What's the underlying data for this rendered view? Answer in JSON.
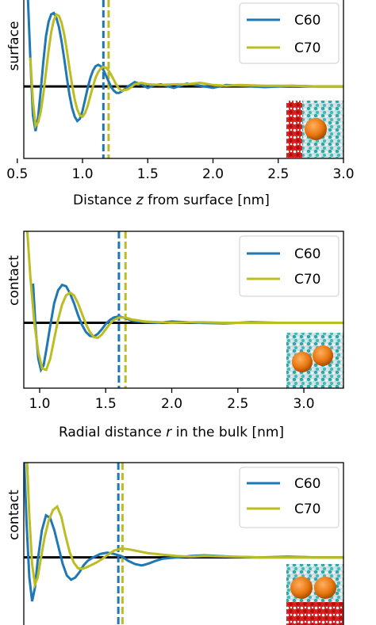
{
  "colors": {
    "c60": "#1f77b4",
    "c70": "#bcbd22",
    "zero": "#000000"
  },
  "chart_data": [
    {
      "type": "line",
      "ylabel": "surface",
      "xlabel_pre": "Distance ",
      "xlabel_var": "z",
      "xlabel_post": " from surface [nm]",
      "xlim": [
        0.55,
        3.0
      ],
      "ylim": [
        -1.0,
        1.2
      ],
      "xticks": [
        0.5,
        1.0,
        1.5,
        2.0,
        2.5,
        3.0
      ],
      "xtick_labels": [
        "0.5",
        "1.0",
        "1.5",
        "2.0",
        "2.5",
        "3.0"
      ],
      "legend_position": "top-right",
      "inset": "surface-c60-snapshot",
      "vlines": {
        "C60": 1.16,
        "C70": 1.2
      },
      "series": [
        {
          "name": "C60",
          "x": [
            0.58,
            0.6,
            0.62,
            0.64,
            0.66,
            0.68,
            0.7,
            0.72,
            0.74,
            0.76,
            0.78,
            0.8,
            0.82,
            0.84,
            0.86,
            0.88,
            0.9,
            0.92,
            0.94,
            0.96,
            0.98,
            1.0,
            1.02,
            1.04,
            1.06,
            1.08,
            1.1,
            1.12,
            1.14,
            1.16,
            1.18,
            1.2,
            1.22,
            1.24,
            1.26,
            1.28,
            1.3,
            1.35,
            1.4,
            1.45,
            1.5,
            1.55,
            1.6,
            1.7,
            1.8,
            1.9,
            2.0,
            2.1,
            2.2,
            2.4,
            2.6,
            2.8,
            3.0
          ],
          "y": [
            1.3,
            0.4,
            -0.4,
            -0.62,
            -0.42,
            -0.05,
            0.35,
            0.7,
            0.9,
            1.0,
            1.02,
            0.95,
            0.82,
            0.62,
            0.38,
            0.12,
            -0.12,
            -0.3,
            -0.42,
            -0.48,
            -0.45,
            -0.34,
            -0.18,
            -0.02,
            0.12,
            0.22,
            0.28,
            0.3,
            0.28,
            0.23,
            0.15,
            0.07,
            -0.01,
            -0.06,
            -0.09,
            -0.09,
            -0.07,
            0.0,
            0.06,
            0.03,
            -0.02,
            0.02,
            0.03,
            -0.02,
            0.04,
            0.01,
            -0.02,
            0.02,
            0.01,
            -0.01,
            0.01,
            0.0,
            0.0
          ]
        },
        {
          "name": "C70",
          "x": [
            0.6,
            0.62,
            0.64,
            0.66,
            0.68,
            0.7,
            0.72,
            0.74,
            0.76,
            0.78,
            0.8,
            0.82,
            0.84,
            0.86,
            0.88,
            0.9,
            0.92,
            0.94,
            0.96,
            0.98,
            1.0,
            1.02,
            1.04,
            1.06,
            1.08,
            1.1,
            1.12,
            1.14,
            1.16,
            1.18,
            1.2,
            1.22,
            1.24,
            1.26,
            1.28,
            1.3,
            1.35,
            1.4,
            1.45,
            1.5,
            1.6,
            1.7,
            1.8,
            1.9,
            2.0,
            2.1,
            2.2,
            2.4,
            2.6,
            2.8,
            3.0
          ],
          "y": [
            0.4,
            -0.2,
            -0.55,
            -0.5,
            -0.35,
            -0.1,
            0.2,
            0.5,
            0.75,
            0.92,
            1.0,
            0.98,
            0.88,
            0.72,
            0.5,
            0.25,
            0.02,
            -0.18,
            -0.32,
            -0.4,
            -0.42,
            -0.37,
            -0.27,
            -0.13,
            0.0,
            0.12,
            0.2,
            0.25,
            0.27,
            0.26,
            0.22,
            0.16,
            0.09,
            0.02,
            -0.03,
            -0.06,
            -0.04,
            0.03,
            0.05,
            0.03,
            0.02,
            0.03,
            0.03,
            0.05,
            0.02,
            0.01,
            0.02,
            0.01,
            0.01,
            0.0,
            0.0
          ]
        }
      ]
    },
    {
      "type": "line",
      "ylabel": "contact",
      "xlabel_pre": "Radial distance ",
      "xlabel_var": "r",
      "xlabel_post": " in the bulk [nm]",
      "xlim": [
        0.88,
        3.3
      ],
      "ylim": [
        -1.0,
        1.4
      ],
      "xticks": [
        1.0,
        1.5,
        2.0,
        2.5,
        3.0
      ],
      "xtick_labels": [
        "1.0",
        "1.5",
        "2.0",
        "2.5",
        "3.0"
      ],
      "legend_position": "top-right",
      "inset": "bulk-c60-pair-snapshot",
      "vlines": {
        "C60": 1.6,
        "C70": 1.65
      },
      "series": [
        {
          "name": "C60",
          "x": [
            0.95,
            0.97,
            0.99,
            1.01,
            1.03,
            1.05,
            1.08,
            1.11,
            1.14,
            1.17,
            1.2,
            1.23,
            1.26,
            1.29,
            1.32,
            1.35,
            1.38,
            1.41,
            1.44,
            1.47,
            1.5,
            1.53,
            1.56,
            1.6,
            1.65,
            1.7,
            1.8,
            1.9,
            2.0,
            2.2,
            2.4,
            2.6,
            2.8,
            3.0,
            3.3
          ],
          "y": [
            0.6,
            -0.1,
            -0.55,
            -0.72,
            -0.65,
            -0.42,
            -0.05,
            0.3,
            0.5,
            0.58,
            0.56,
            0.45,
            0.3,
            0.12,
            -0.03,
            -0.14,
            -0.2,
            -0.21,
            -0.17,
            -0.1,
            -0.02,
            0.04,
            0.08,
            0.1,
            0.07,
            0.03,
            0.01,
            0.0,
            0.02,
            0.0,
            -0.01,
            0.01,
            0.0,
            0.0,
            0.0
          ]
        },
        {
          "name": "C70",
          "x": [
            0.9,
            0.93,
            0.96,
            0.99,
            1.02,
            1.05,
            1.08,
            1.11,
            1.14,
            1.17,
            1.2,
            1.23,
            1.26,
            1.29,
            1.32,
            1.35,
            1.38,
            1.41,
            1.44,
            1.47,
            1.5,
            1.53,
            1.56,
            1.6,
            1.65,
            1.7,
            1.8,
            1.9,
            2.0,
            2.2,
            2.4,
            2.6,
            2.8,
            3.0,
            3.3
          ],
          "y": [
            1.6,
            0.7,
            0.0,
            -0.45,
            -0.7,
            -0.72,
            -0.55,
            -0.25,
            0.05,
            0.28,
            0.42,
            0.46,
            0.42,
            0.3,
            0.14,
            -0.02,
            -0.14,
            -0.22,
            -0.23,
            -0.18,
            -0.1,
            -0.02,
            0.04,
            0.08,
            0.08,
            0.05,
            0.02,
            0.01,
            0.0,
            0.01,
            0.0,
            0.0,
            0.0,
            0.0,
            0.0
          ]
        }
      ]
    },
    {
      "type": "line",
      "ylabel": "contact",
      "xlim": [
        0.9,
        3.2
      ],
      "ylim": [
        -1.0,
        1.4
      ],
      "legend_position": "top-right",
      "inset": "contact-c60-pair-surface-snapshot",
      "vlines": {
        "C60": 1.58,
        "C70": 1.61
      },
      "series": [
        {
          "name": "C60",
          "x": [
            0.9,
            0.92,
            0.94,
            0.96,
            0.98,
            1.0,
            1.03,
            1.06,
            1.09,
            1.12,
            1.15,
            1.18,
            1.21,
            1.24,
            1.27,
            1.3,
            1.33,
            1.36,
            1.4,
            1.45,
            1.5,
            1.55,
            1.6,
            1.65,
            1.7,
            1.75,
            1.8,
            1.85,
            1.9,
            2.0,
            2.1,
            2.2,
            2.4,
            2.6,
            2.8,
            3.0,
            3.2
          ],
          "y": [
            1.6,
            0.5,
            -0.3,
            -0.65,
            -0.45,
            -0.05,
            0.4,
            0.62,
            0.58,
            0.4,
            0.15,
            -0.1,
            -0.27,
            -0.33,
            -0.3,
            -0.22,
            -0.12,
            -0.05,
            0.0,
            0.05,
            0.07,
            0.05,
            0.02,
            -0.05,
            -0.1,
            -0.12,
            -0.09,
            -0.05,
            -0.02,
            0.0,
            0.02,
            0.03,
            0.01,
            0.0,
            0.01,
            0.0,
            0.0
          ]
        },
        {
          "name": "C70",
          "x": [
            0.92,
            0.94,
            0.96,
            0.98,
            1.0,
            1.02,
            1.05,
            1.08,
            1.11,
            1.14,
            1.17,
            1.2,
            1.23,
            1.26,
            1.29,
            1.32,
            1.35,
            1.38,
            1.42,
            1.46,
            1.5,
            1.55,
            1.6,
            1.65,
            1.7,
            1.75,
            1.8,
            1.85,
            1.9,
            2.0,
            2.1,
            2.2,
            2.4,
            2.6,
            2.8,
            3.0,
            3.2
          ],
          "y": [
            1.6,
            0.6,
            -0.1,
            -0.4,
            -0.3,
            -0.05,
            0.3,
            0.55,
            0.7,
            0.75,
            0.6,
            0.32,
            0.08,
            -0.08,
            -0.16,
            -0.17,
            -0.15,
            -0.12,
            -0.08,
            -0.03,
            0.03,
            0.1,
            0.13,
            0.12,
            0.1,
            0.08,
            0.06,
            0.05,
            0.04,
            0.02,
            0.01,
            0.02,
            0.01,
            0.0,
            0.0,
            0.0,
            0.0
          ]
        }
      ]
    }
  ]
}
